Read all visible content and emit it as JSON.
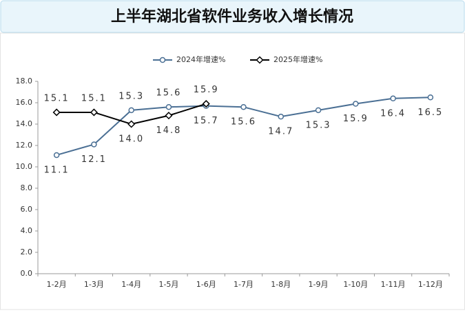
{
  "chart_data": {
    "type": "line",
    "title": "上半年湖北省软件业务收入增长情况",
    "categories": [
      "1-2月",
      "1-3月",
      "1-4月",
      "1-5月",
      "1-6月",
      "1-7月",
      "1-8月",
      "1-9月",
      "1-10月",
      "1-11月",
      "1-12月"
    ],
    "series": [
      {
        "name": "2024年增速%",
        "color": "#4a6f94",
        "marker": "circle",
        "values": [
          11.1,
          12.1,
          15.3,
          15.6,
          15.7,
          15.6,
          14.7,
          15.3,
          15.9,
          16.4,
          16.5
        ]
      },
      {
        "name": "2025年增速%",
        "color": "#000000",
        "marker": "diamond",
        "values": [
          15.1,
          15.1,
          14.0,
          14.8,
          15.9,
          null,
          null,
          null,
          null,
          null,
          null
        ],
        "value_labels": [
          "15.1",
          "15.1",
          "14.0",
          "14.8",
          "15.9",
          null,
          null,
          null,
          null,
          null,
          null
        ]
      }
    ],
    "ylim": [
      0,
      18
    ],
    "yticks": [
      {
        "value": 0,
        "label": "0.0"
      },
      {
        "value": 2,
        "label": "2.0"
      },
      {
        "value": 4,
        "label": "4.0"
      },
      {
        "value": 6,
        "label": "6.0"
      },
      {
        "value": 8,
        "label": "8.0"
      },
      {
        "value": 10,
        "label": "10.0"
      },
      {
        "value": 12,
        "label": "12.0"
      },
      {
        "value": 14,
        "label": "14.0"
      },
      {
        "value": 16,
        "label": "16.0"
      },
      {
        "value": 18,
        "label": "18.0"
      }
    ],
    "grid": false,
    "legend": "top"
  }
}
